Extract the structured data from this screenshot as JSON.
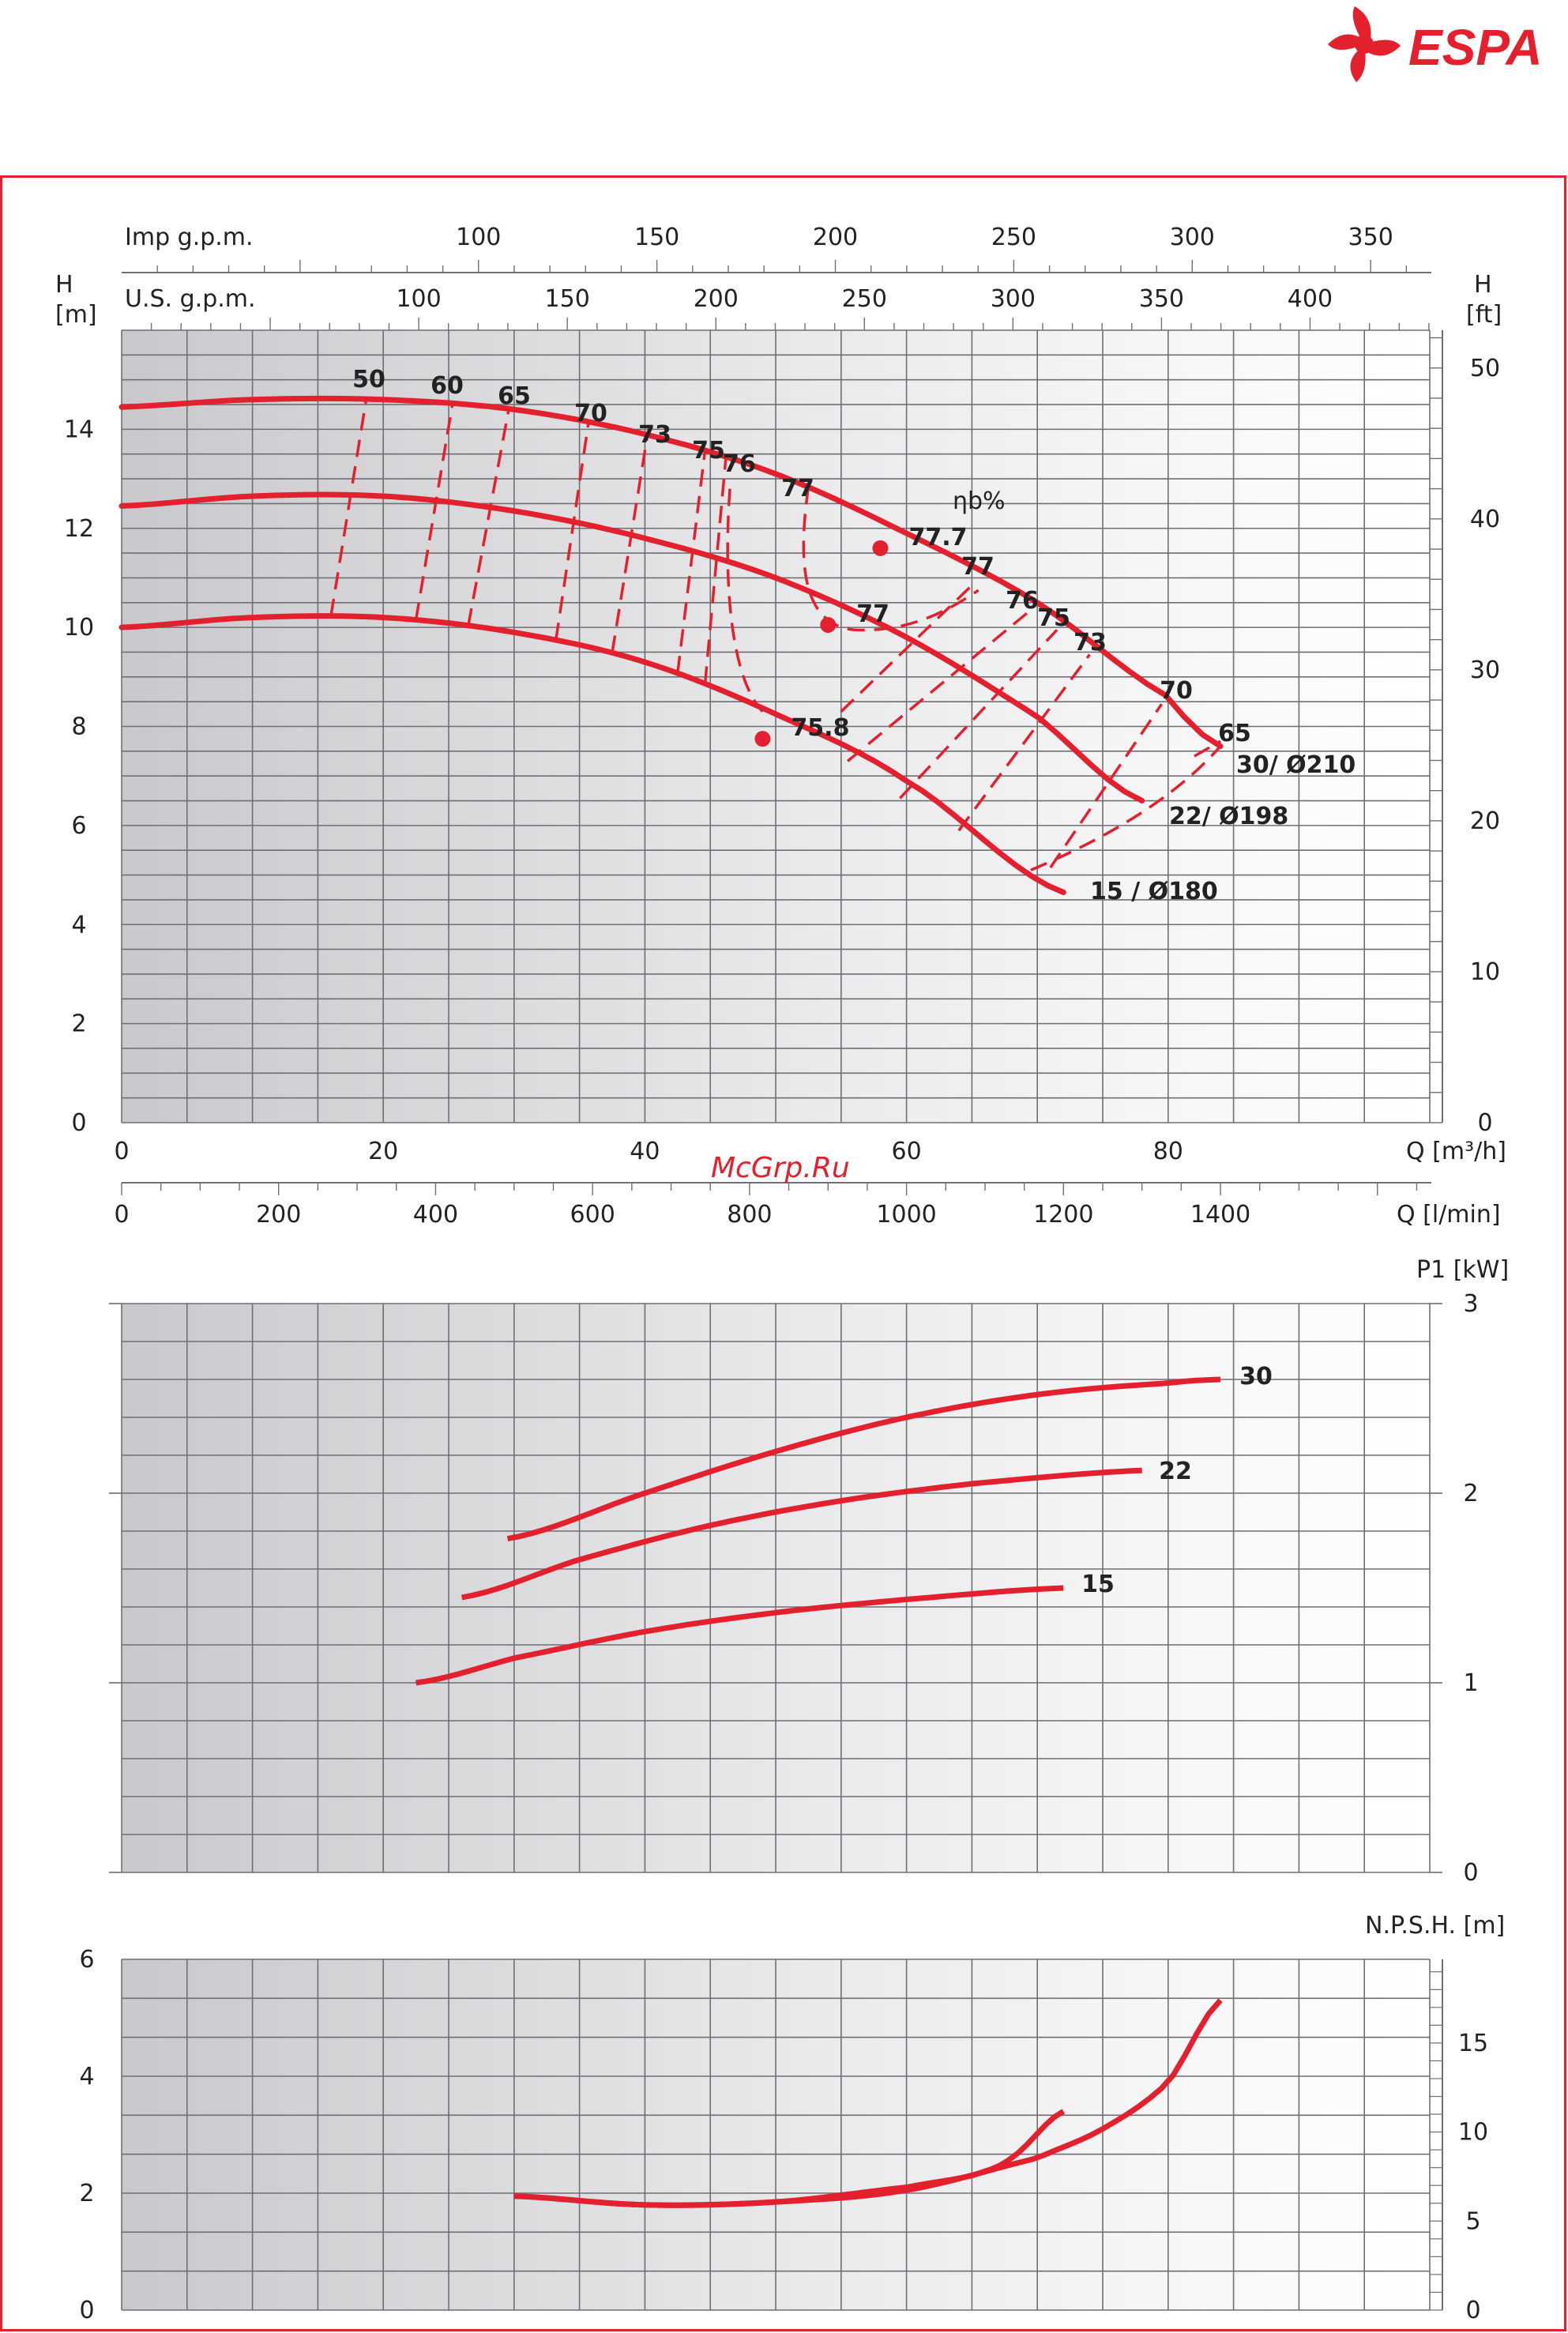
{
  "brand": {
    "name": "ESPA",
    "color": "#e2202e"
  },
  "watermark": "McGrp.Ru",
  "chart_data": [
    {
      "type": "line",
      "name_panel": "head",
      "ylabel_left": "H\n[m]",
      "ylabel_right": "H\n[ft]",
      "xlabel": "Q [m³/h]",
      "xlabel_lmin": "Q [l/min]",
      "xlabel_imp": "Imp g.p.m.",
      "xlabel_us": "U.S. g.p.m.",
      "xlim": [
        0,
        100
      ],
      "ylim": [
        0,
        16
      ],
      "ylim_ft": [
        0,
        52.5
      ],
      "x_ticks": [
        0,
        20,
        40,
        60,
        80
      ],
      "y_ticks": [
        0,
        2,
        4,
        6,
        8,
        10,
        12,
        14
      ],
      "y_ticks_ft": [
        0,
        10,
        20,
        30,
        40,
        50
      ],
      "lmin_ticks": [
        0,
        200,
        400,
        600,
        800,
        1000,
        1200,
        1400
      ],
      "imp_ticks": [
        100,
        150,
        200,
        250,
        300,
        350
      ],
      "us_ticks": [
        100,
        150,
        200,
        250,
        300,
        350,
        400
      ],
      "efficiency_label": "ηb%",
      "series": [
        {
          "name": "30/ Ø210",
          "x": [
            0,
            10,
            20,
            30,
            40,
            50,
            60,
            70,
            80,
            84
          ],
          "y": [
            14.45,
            14.6,
            14.6,
            14.4,
            13.9,
            13.1,
            11.9,
            10.5,
            8.6,
            7.6
          ]
        },
        {
          "name": "22/ Ø198",
          "x": [
            0,
            10,
            20,
            30,
            40,
            50,
            60,
            70,
            78
          ],
          "y": [
            12.45,
            12.65,
            12.65,
            12.35,
            11.8,
            11.0,
            9.8,
            8.2,
            6.5
          ]
        },
        {
          "name": "15 / Ø180",
          "x": [
            0,
            10,
            20,
            30,
            40,
            50,
            60,
            72
          ],
          "y": [
            10.0,
            10.2,
            10.2,
            9.9,
            9.3,
            8.25,
            6.9,
            4.65
          ]
        }
      ],
      "markers": [
        {
          "x": 58,
          "y": 11.6,
          "label": "77.7"
        },
        {
          "x": 54,
          "y": 10.05,
          "label": "77"
        },
        {
          "x": 49,
          "y": 7.75,
          "label": "75.8"
        }
      ],
      "iso_efficiency": [
        {
          "label": "50",
          "x": [
            16,
            18.7
          ]
        },
        {
          "label": "60",
          "x": [
            22.5,
            25.3
          ]
        },
        {
          "label": "65",
          "x": [
            26.5,
            29.6
          ]
        },
        {
          "label": "70",
          "x": [
            33.2,
            35.7
          ]
        },
        {
          "label": "73",
          "x": [
            37.5,
            40.2
          ]
        },
        {
          "label": "75",
          "x": [
            42.5,
            44.6
          ]
        },
        {
          "label": "76",
          "x": [
            44.6,
            46.2
          ]
        },
        {
          "label": "77",
          "x": [
            52.5,
            50.6
          ]
        },
        {
          "label": "77",
          "x": [
            65.5,
            60.2
          ]
        },
        {
          "label": "76",
          "x": [
            69.8,
            61.3
          ]
        },
        {
          "label": "75",
          "x": [
            71.5,
            64
          ]
        },
        {
          "label": "73",
          "x": [
            74,
            67.5
          ]
        },
        {
          "label": "70",
          "x": [
            79.5,
            70.5
          ]
        },
        {
          "label": "65",
          "x": [
            84,
            74
          ]
        }
      ]
    },
    {
      "type": "line",
      "name_panel": "power",
      "ylabel": "P1 [kW]",
      "xlim": [
        0,
        100
      ],
      "ylim": [
        0,
        3
      ],
      "y_ticks": [
        0,
        1,
        2,
        3
      ],
      "series": [
        {
          "name": "30",
          "x": [
            29.5,
            40,
            50,
            60,
            70,
            80,
            84
          ],
          "y": [
            1.76,
            2.0,
            2.22,
            2.4,
            2.52,
            2.58,
            2.6
          ]
        },
        {
          "name": "22",
          "x": [
            26,
            35,
            45,
            55,
            65,
            78
          ],
          "y": [
            1.45,
            1.65,
            1.83,
            1.96,
            2.05,
            2.12
          ]
        },
        {
          "name": "15",
          "x": [
            22.5,
            30,
            40,
            50,
            60,
            72
          ],
          "y": [
            1.0,
            1.13,
            1.27,
            1.37,
            1.44,
            1.5
          ]
        }
      ]
    },
    {
      "type": "line",
      "name_panel": "npsh",
      "ylabel": "N.P.S.H. [m]",
      "xlim": [
        0,
        100
      ],
      "ylim": [
        0,
        6
      ],
      "ylim_ft": [
        0,
        19.7
      ],
      "y_ticks": [
        0,
        2,
        4,
        6
      ],
      "y_ticks_ft": [
        0,
        5,
        10,
        15
      ],
      "series": [
        {
          "name": "",
          "x": [
            30,
            40,
            50,
            60,
            65,
            68,
            72
          ],
          "y": [
            1.95,
            1.8,
            1.85,
            2.1,
            2.3,
            2.6,
            3.4
          ]
        },
        {
          "name": "",
          "x": [
            30,
            40,
            50,
            60,
            70,
            75,
            80,
            84
          ],
          "y": [
            1.95,
            1.8,
            1.85,
            2.05,
            2.6,
            3.1,
            3.9,
            5.3
          ]
        }
      ]
    }
  ]
}
